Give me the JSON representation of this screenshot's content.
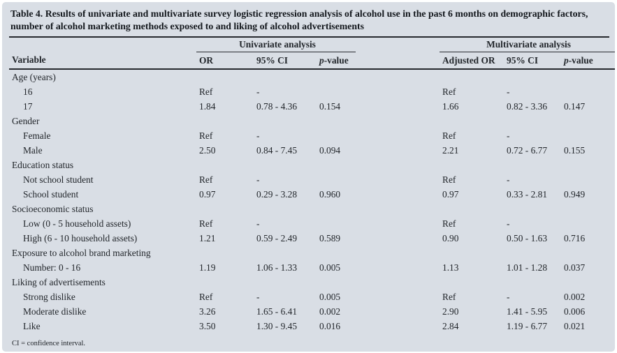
{
  "colors": {
    "panel_background": "#d9dee5",
    "text": "#22262b",
    "rule": "#26292e"
  },
  "table": {
    "title": "Table 4. Results of univariate and multivariate survey logistic regression analysis of alcohol use in the past 6 months on demographic factors, number of alcohol marketing methods exposed to and liking of alcohol advertisements",
    "group_headers": {
      "univariate": "Univariate analysis",
      "multivariate": "Multivariate analysis"
    },
    "columns": {
      "variable": "Variable",
      "or": "OR",
      "ci_univariate": "95% CI",
      "p_italic": "p",
      "p_rest": "-value",
      "adjusted_or": "Adjusted OR",
      "ci_multivariate": "95% CI"
    },
    "rows": [
      {
        "type": "section",
        "label": "Age (years)"
      },
      {
        "type": "data",
        "label": "16",
        "or": "Ref",
        "ci1": "-",
        "p1": "",
        "aor": "Ref",
        "ci2": "-",
        "p2": ""
      },
      {
        "type": "data",
        "label": "17",
        "or": "1.84",
        "ci1": "0.78 - 4.36",
        "p1": "0.154",
        "aor": "1.66",
        "ci2": "0.82 - 3.36",
        "p2": "0.147"
      },
      {
        "type": "section",
        "label": "Gender"
      },
      {
        "type": "data",
        "label": "Female",
        "or": "Ref",
        "ci1": "-",
        "p1": "",
        "aor": "Ref",
        "ci2": "-",
        "p2": ""
      },
      {
        "type": "data",
        "label": "Male",
        "or": "2.50",
        "ci1": "0.84 - 7.45",
        "p1": "0.094",
        "aor": "2.21",
        "ci2": "0.72 - 6.77",
        "p2": "0.155"
      },
      {
        "type": "section",
        "label": "Education status"
      },
      {
        "type": "data",
        "label": "Not school student",
        "or": "Ref",
        "ci1": "-",
        "p1": "",
        "aor": "Ref",
        "ci2": "-",
        "p2": ""
      },
      {
        "type": "data",
        "label": "School student",
        "or": "0.97",
        "ci1": "0.29 - 3.28",
        "p1": "0.960",
        "aor": "0.97",
        "ci2": "0.33 - 2.81",
        "p2": "0.949"
      },
      {
        "type": "section",
        "label": "Socioeconomic status"
      },
      {
        "type": "data",
        "label": "Low (0 - 5 household assets)",
        "or": "Ref",
        "ci1": "-",
        "p1": "",
        "aor": "Ref",
        "ci2": "-",
        "p2": ""
      },
      {
        "type": "data",
        "label": "High (6 - 10 household assets)",
        "or": "1.21",
        "ci1": "0.59 - 2.49",
        "p1": "0.589",
        "aor": "0.90",
        "ci2": "0.50 - 1.63",
        "p2": "0.716"
      },
      {
        "type": "section",
        "label": "Exposure to alcohol brand marketing"
      },
      {
        "type": "data",
        "label": "Number: 0 - 16",
        "or": "1.19",
        "ci1": "1.06 - 1.33",
        "p1": "0.005",
        "aor": "1.13",
        "ci2": "1.01 - 1.28",
        "p2": "0.037"
      },
      {
        "type": "section",
        "label": "Liking of advertisements"
      },
      {
        "type": "data",
        "label": "Strong dislike",
        "or": "Ref",
        "ci1": "-",
        "p1": "0.005",
        "aor": "Ref",
        "ci2": "-",
        "p2": "0.002"
      },
      {
        "type": "data",
        "label": "Moderate dislike",
        "or": "3.26",
        "ci1": "1.65 - 6.41",
        "p1": "0.002",
        "aor": "2.90",
        "ci2": "1.41 - 5.95",
        "p2": "0.006"
      },
      {
        "type": "data",
        "label": "Like",
        "or": "3.50",
        "ci1": "1.30 - 9.45",
        "p1": "0.016",
        "aor": "2.84",
        "ci2": "1.19 - 6.77",
        "p2": "0.021"
      }
    ],
    "footnote": "CI = confidence interval."
  }
}
